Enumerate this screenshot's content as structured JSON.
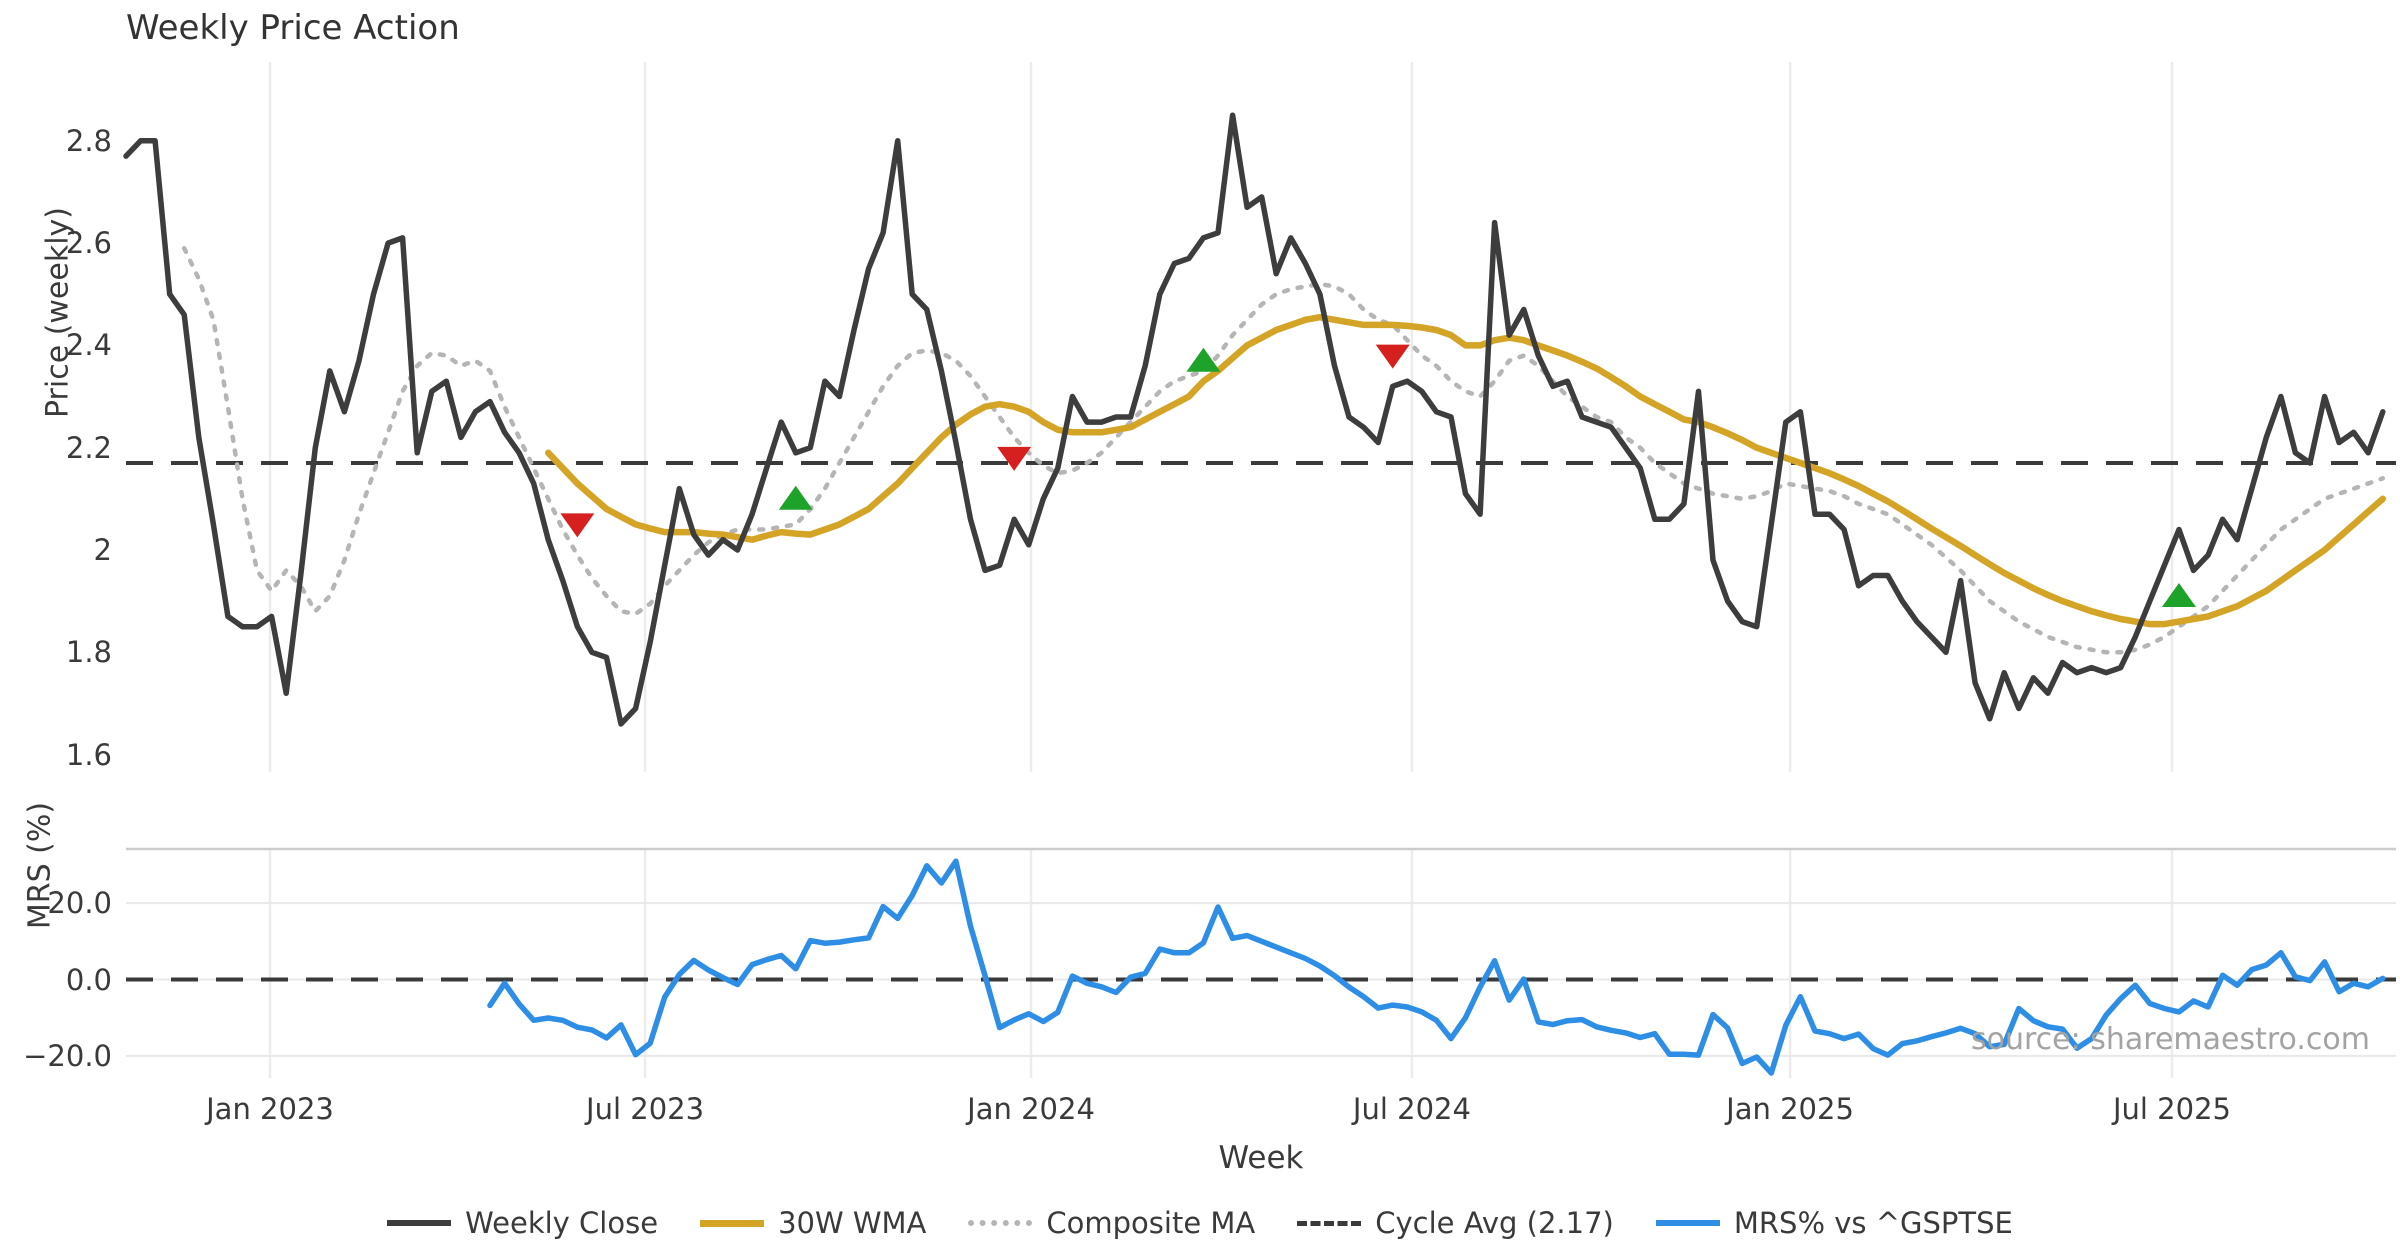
{
  "title": "Weekly Price Action",
  "source_text": "source: sharemaestro.com",
  "xaxis": {
    "label": "Week",
    "ticks": [
      {
        "label": "Jan 2023",
        "week": 9.89
      },
      {
        "label": "Jul 2023",
        "week": 35.65
      },
      {
        "label": "Jan 2024",
        "week": 62.16
      },
      {
        "label": "Jul 2024",
        "week": 88.32
      },
      {
        "label": "Jan 2025",
        "week": 114.29
      },
      {
        "label": "Jul 2025",
        "week": 140.52
      }
    ]
  },
  "price_panel": {
    "ylabel": "Price (weekly)",
    "yticks": [
      {
        "label": "2.8",
        "value": 2.8
      },
      {
        "label": "2.6",
        "value": 2.6
      },
      {
        "label": "2.4",
        "value": 2.4
      },
      {
        "label": "2.2",
        "value": 2.2
      },
      {
        "label": "2",
        "value": 2.0
      },
      {
        "label": "1.8",
        "value": 1.8
      },
      {
        "label": "1.6",
        "value": 1.6
      }
    ]
  },
  "mrs_panel": {
    "ylabel": "MRS (%)",
    "yticks": [
      {
        "label": "20.0",
        "value": 20
      },
      {
        "label": "0.0",
        "value": 0
      },
      {
        "label": "−20.0",
        "value": -20
      }
    ]
  },
  "legend": [
    {
      "label": "Weekly Close",
      "swatch": "sw-close",
      "name": "legend-weekly-close"
    },
    {
      "label": "30W WMA",
      "swatch": "sw-wma",
      "name": "legend-30w-wma"
    },
    {
      "label": "Composite MA",
      "swatch": "sw-comp",
      "name": "legend-composite-ma"
    },
    {
      "label": "Cycle Avg (2.17)",
      "swatch": "sw-cycle",
      "name": "legend-cycle-avg"
    },
    {
      "label": "MRS% vs ^GSPTSE",
      "swatch": "sw-mrs",
      "name": "legend-mrs"
    }
  ],
  "colors": {
    "weekly_close": "#3d3d3d",
    "wma": "#d4a427",
    "composite": "#b5b5b5",
    "cycle_avg": "#3a3a3a",
    "mrs": "#2e8ee6",
    "sell_marker": "#d62020",
    "buy_marker": "#1ea32a",
    "gridline": "#ececec",
    "panel_spine": "#cccccc",
    "mrs_gridline": "#e8e8e8"
  },
  "chart_data": {
    "type": "line",
    "title": "Weekly Price Action",
    "x_unit": "week_index",
    "weeks_total": 156,
    "price_ylim": [
      1.57,
      2.95
    ],
    "mrs_ylim": [
      -26,
      34
    ],
    "cycle_avg": 2.17,
    "series": [
      {
        "name": "Weekly Close",
        "start_week": 0,
        "values": [
          2.77,
          2.8,
          2.8,
          2.5,
          2.46,
          2.22,
          2.05,
          1.87,
          1.85,
          1.85,
          1.87,
          1.72,
          1.95,
          2.2,
          2.35,
          2.27,
          2.37,
          2.5,
          2.6,
          2.61,
          2.19,
          2.31,
          2.33,
          2.22,
          2.27,
          2.29,
          2.23,
          2.19,
          2.13,
          2.02,
          1.94,
          1.85,
          1.8,
          1.79,
          1.66,
          1.69,
          1.82,
          1.97,
          2.12,
          2.03,
          1.99,
          2.02,
          2.0,
          2.07,
          2.16,
          2.25,
          2.19,
          2.2,
          2.33,
          2.3,
          2.43,
          2.55,
          2.62,
          2.8,
          2.5,
          2.47,
          2.35,
          2.21,
          2.06,
          1.96,
          1.97,
          2.06,
          2.01,
          2.1,
          2.16,
          2.3,
          2.25,
          2.25,
          2.26,
          2.26,
          2.36,
          2.5,
          2.56,
          2.57,
          2.61,
          2.62,
          2.85,
          2.67,
          2.69,
          2.54,
          2.61,
          2.56,
          2.5,
          2.36,
          2.26,
          2.24,
          2.21,
          2.32,
          2.33,
          2.31,
          2.27,
          2.26,
          2.11,
          2.07,
          2.64,
          2.42,
          2.47,
          2.38,
          2.32,
          2.33,
          2.26,
          2.25,
          2.24,
          2.2,
          2.16,
          2.06,
          2.06,
          2.09,
          2.31,
          1.98,
          1.9,
          1.86,
          1.85,
          2.05,
          2.25,
          2.27,
          2.07,
          2.07,
          2.04,
          1.93,
          1.95,
          1.95,
          1.9,
          1.86,
          1.83,
          1.8,
          1.94,
          1.74,
          1.67,
          1.76,
          1.69,
          1.75,
          1.72,
          1.78,
          1.76,
          1.77,
          1.76,
          1.77,
          1.83,
          1.9,
          1.97,
          2.04,
          1.96,
          1.99,
          2.06,
          2.02,
          2.12,
          2.22,
          2.3,
          2.19,
          2.17,
          2.3,
          2.21,
          2.23,
          2.19,
          2.27
        ]
      },
      {
        "name": "30W WMA",
        "start_week": 29,
        "values": [
          2.19,
          2.16,
          2.13,
          2.105,
          2.08,
          2.065,
          2.05,
          2.042,
          2.035,
          2.035,
          2.035,
          2.032,
          2.03,
          2.025,
          2.02,
          2.028,
          2.035,
          2.032,
          2.03,
          2.04,
          2.05,
          2.065,
          2.08,
          2.105,
          2.13,
          2.16,
          2.19,
          2.22,
          2.245,
          2.265,
          2.28,
          2.285,
          2.28,
          2.27,
          2.25,
          2.235,
          2.23,
          2.23,
          2.23,
          2.235,
          2.24,
          2.255,
          2.27,
          2.285,
          2.3,
          2.33,
          2.35,
          2.375,
          2.4,
          2.415,
          2.43,
          2.44,
          2.45,
          2.455,
          2.45,
          2.445,
          2.44,
          2.44,
          2.44,
          2.438,
          2.435,
          2.43,
          2.42,
          2.4,
          2.4,
          2.41,
          2.415,
          2.41,
          2.4,
          2.39,
          2.38,
          2.368,
          2.355,
          2.338,
          2.32,
          2.3,
          2.285,
          2.27,
          2.255,
          2.25,
          2.24,
          2.228,
          2.215,
          2.2,
          2.19,
          2.18,
          2.17,
          2.16,
          2.15,
          2.138,
          2.125,
          2.11,
          2.095,
          2.078,
          2.06,
          2.042,
          2.025,
          2.008,
          1.99,
          1.972,
          1.955,
          1.94,
          1.925,
          1.912,
          1.9,
          1.89,
          1.88,
          1.872,
          1.865,
          1.86,
          1.855,
          1.855,
          1.86,
          1.865,
          1.87,
          1.88,
          1.89,
          1.905,
          1.92,
          1.94,
          1.96,
          1.98,
          2.0,
          2.025,
          2.05,
          2.075,
          2.1
        ]
      },
      {
        "name": "Composite MA",
        "start_week": 4,
        "values": [
          2.59,
          2.53,
          2.45,
          2.28,
          2.1,
          1.96,
          1.92,
          1.96,
          1.93,
          1.88,
          1.91,
          1.98,
          2.07,
          2.15,
          2.23,
          2.31,
          2.36,
          2.385,
          2.38,
          2.36,
          2.37,
          2.35,
          2.28,
          2.22,
          2.16,
          2.1,
          2.04,
          1.99,
          1.945,
          1.91,
          1.88,
          1.875,
          1.895,
          1.93,
          1.96,
          1.99,
          2.015,
          2.03,
          2.04,
          2.04,
          2.04,
          2.045,
          2.05,
          2.08,
          2.12,
          2.17,
          2.22,
          2.27,
          2.32,
          2.36,
          2.385,
          2.39,
          2.385,
          2.37,
          2.34,
          2.3,
          2.26,
          2.22,
          2.19,
          2.165,
          2.15,
          2.155,
          2.17,
          2.19,
          2.22,
          2.25,
          2.28,
          2.31,
          2.33,
          2.34,
          2.35,
          2.38,
          2.42,
          2.45,
          2.48,
          2.5,
          2.51,
          2.515,
          2.52,
          2.515,
          2.5,
          2.47,
          2.45,
          2.44,
          2.41,
          2.38,
          2.36,
          2.33,
          2.31,
          2.3,
          2.33,
          2.37,
          2.38,
          2.36,
          2.33,
          2.3,
          2.28,
          2.26,
          2.25,
          2.22,
          2.2,
          2.17,
          2.15,
          2.13,
          2.12,
          2.11,
          2.105,
          2.1,
          2.105,
          2.115,
          2.13,
          2.125,
          2.12,
          2.115,
          2.105,
          2.09,
          2.08,
          2.07,
          2.05,
          2.03,
          2.01,
          1.985,
          1.96,
          1.93,
          1.9,
          1.88,
          1.86,
          1.845,
          1.83,
          1.82,
          1.81,
          1.805,
          1.8,
          1.8,
          1.805,
          1.815,
          1.83,
          1.85,
          1.87,
          1.89,
          1.92,
          1.95,
          1.98,
          2.01,
          2.04,
          2.06,
          2.08,
          2.1,
          2.11,
          2.12,
          2.13,
          2.14
        ]
      },
      {
        "name": "MRS% vs ^GSPTSE",
        "start_week": 25,
        "values": [
          -6.8,
          -1.0,
          -6.4,
          -10.7,
          -10.1,
          -10.7,
          -12.5,
          -13.2,
          -15.3,
          -11.9,
          -19.7,
          -16.7,
          -4.6,
          1.3,
          5.0,
          2.5,
          0.5,
          -1.3,
          3.9,
          5.2,
          6.3,
          2.8,
          10.2,
          9.5,
          9.8,
          10.4,
          10.9,
          19.1,
          16.0,
          22.0,
          29.8,
          25.3,
          31.0,
          14.0,
          1.0,
          -12.6,
          -10.6,
          -9.0,
          -11.0,
          -8.6,
          0.9,
          -1.0,
          -1.9,
          -3.4,
          0.6,
          1.6,
          8.0,
          7.0,
          7.0,
          9.6,
          19.0,
          10.8,
          11.5,
          10.0,
          8.5,
          7.0,
          5.5,
          3.5,
          1.0,
          -2.0,
          -4.5,
          -7.5,
          -6.7,
          -7.2,
          -8.5,
          -10.7,
          -15.5,
          -10.0,
          -2.0,
          4.9,
          -5.4,
          0.1,
          -11.1,
          -11.8,
          -10.8,
          -10.5,
          -12.4,
          -13.3,
          -14.0,
          -15.2,
          -14.2,
          -19.6,
          -19.6,
          -19.8,
          -9.2,
          -12.7,
          -22.0,
          -20.3,
          -24.5,
          -12.0,
          -4.5,
          -13.5,
          -14.2,
          -15.5,
          -14.3,
          -18.1,
          -19.8,
          -16.8,
          -16.1,
          -15.0,
          -14.0,
          -12.8,
          -14.2,
          -17.6,
          -17.0,
          -7.6,
          -10.8,
          -12.4,
          -13.0,
          -18.0,
          -15.5,
          -9.3,
          -5.0,
          -1.5,
          -6.3,
          -7.6,
          -8.5,
          -5.6,
          -7.2,
          1.1,
          -1.5,
          2.6,
          3.8,
          7.0,
          0.7,
          -0.3,
          4.6,
          -3.2,
          -1.0,
          -1.9,
          0.3
        ]
      }
    ],
    "markers": {
      "sell": [
        {
          "week": 31,
          "value": 2.05
        },
        {
          "week": 61,
          "value": 2.18
        },
        {
          "week": 87,
          "value": 2.38
        }
      ],
      "buy": [
        {
          "week": 46,
          "value": 2.1
        },
        {
          "week": 74,
          "value": 2.37
        },
        {
          "week": 141,
          "value": 1.91
        }
      ]
    }
  }
}
